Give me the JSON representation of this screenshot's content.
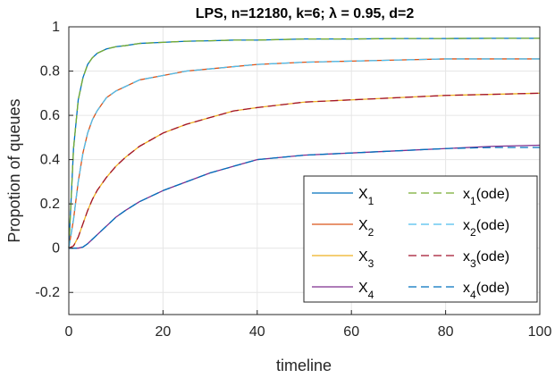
{
  "chart_data": {
    "type": "line",
    "title": "LPS, n=12180, k=6; λ = 0.95, d=2",
    "xlabel": "timeline",
    "ylabel": "Propotion of queues",
    "xlim": [
      0,
      100
    ],
    "ylim": [
      -0.3,
      1
    ],
    "xticks": [
      0,
      20,
      40,
      60,
      80,
      100
    ],
    "yticks": [
      -0.2,
      0,
      0.2,
      0.4,
      0.6,
      0.8,
      1
    ],
    "ytick_labels": [
      "-0.2",
      "0",
      "0.2",
      "0.4",
      "0.6",
      "0.8",
      "1"
    ],
    "grid": true,
    "legend_position": "bottom-right",
    "x": [
      0,
      1,
      2,
      3,
      4,
      5,
      6,
      8,
      10,
      12,
      15,
      20,
      25,
      30,
      35,
      40,
      50,
      60,
      70,
      80,
      90,
      100
    ],
    "series": [
      {
        "name": "X_1",
        "label_main": "X",
        "label_sub": "1",
        "style": "solid",
        "color": "#0072BD",
        "values": [
          0,
          0.45,
          0.67,
          0.77,
          0.83,
          0.86,
          0.88,
          0.9,
          0.91,
          0.915,
          0.925,
          0.93,
          0.935,
          0.937,
          0.94,
          0.94,
          0.945,
          0.945,
          0.947,
          0.947,
          0.948,
          0.948
        ]
      },
      {
        "name": "X_2",
        "label_main": "X",
        "label_sub": "2",
        "style": "solid",
        "color": "#D95319",
        "values": [
          0,
          0.13,
          0.3,
          0.43,
          0.52,
          0.58,
          0.62,
          0.68,
          0.71,
          0.73,
          0.76,
          0.78,
          0.8,
          0.81,
          0.82,
          0.83,
          0.84,
          0.845,
          0.85,
          0.855,
          0.855,
          0.855
        ]
      },
      {
        "name": "X_3",
        "label_main": "X",
        "label_sub": "3",
        "style": "solid",
        "color": "#EDB120",
        "values": [
          0,
          0.01,
          0.05,
          0.11,
          0.17,
          0.22,
          0.26,
          0.32,
          0.37,
          0.41,
          0.46,
          0.52,
          0.56,
          0.59,
          0.62,
          0.635,
          0.66,
          0.67,
          0.68,
          0.69,
          0.695,
          0.7
        ]
      },
      {
        "name": "X_4",
        "label_main": "X",
        "label_sub": "4",
        "style": "solid",
        "color": "#7E2F8E",
        "values": [
          0,
          0,
          0,
          0.005,
          0.02,
          0.04,
          0.06,
          0.1,
          0.14,
          0.17,
          0.21,
          0.26,
          0.3,
          0.34,
          0.37,
          0.4,
          0.42,
          0.43,
          0.44,
          0.45,
          0.46,
          0.465
        ]
      },
      {
        "name": "x_1(ode)",
        "label_main": "x",
        "label_sub": "1",
        "label_suffix": "(ode)",
        "style": "dashed",
        "color": "#77AC30",
        "values": [
          0,
          0.45,
          0.67,
          0.77,
          0.83,
          0.86,
          0.88,
          0.9,
          0.91,
          0.915,
          0.925,
          0.93,
          0.935,
          0.937,
          0.94,
          0.94,
          0.945,
          0.945,
          0.947,
          0.947,
          0.948,
          0.948
        ]
      },
      {
        "name": "x_2(ode)",
        "label_main": "x",
        "label_sub": "2",
        "label_suffix": "(ode)",
        "style": "dashed",
        "color": "#4DBEEE",
        "values": [
          0,
          0.13,
          0.3,
          0.43,
          0.52,
          0.58,
          0.62,
          0.68,
          0.71,
          0.73,
          0.76,
          0.78,
          0.8,
          0.81,
          0.82,
          0.83,
          0.84,
          0.845,
          0.85,
          0.855,
          0.855,
          0.855
        ]
      },
      {
        "name": "x_3(ode)",
        "label_main": "x",
        "label_sub": "3",
        "label_suffix": "(ode)",
        "style": "dashed",
        "color": "#A2142F",
        "values": [
          0,
          0.01,
          0.05,
          0.11,
          0.17,
          0.22,
          0.26,
          0.32,
          0.37,
          0.41,
          0.46,
          0.52,
          0.56,
          0.59,
          0.62,
          0.635,
          0.66,
          0.67,
          0.68,
          0.69,
          0.695,
          0.7
        ]
      },
      {
        "name": "x_4(ode)",
        "label_main": "x",
        "label_sub": "4",
        "label_suffix": "(ode)",
        "style": "dashed",
        "color": "#0072BD",
        "values": [
          0,
          0,
          0,
          0.005,
          0.02,
          0.04,
          0.06,
          0.1,
          0.14,
          0.17,
          0.21,
          0.26,
          0.3,
          0.34,
          0.37,
          0.4,
          0.42,
          0.43,
          0.44,
          0.45,
          0.455,
          0.455
        ]
      }
    ]
  }
}
